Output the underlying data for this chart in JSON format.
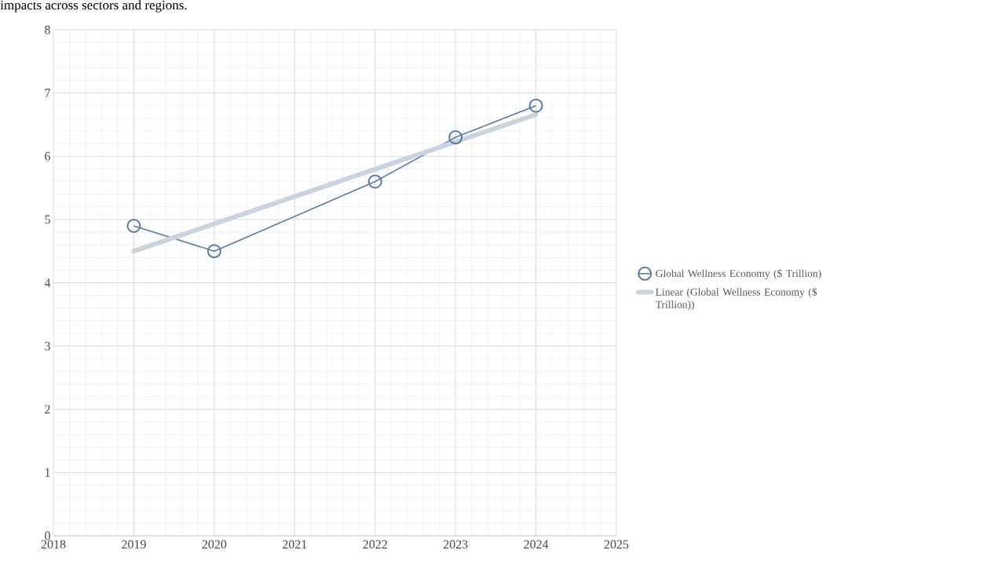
{
  "chart_data": {
    "type": "line",
    "annotations": [
      "impacts across sectors and regions."
    ],
    "series": [
      {
        "name": "Global Wellness Economy ($ Trillion)",
        "color": "#5b7bab",
        "x": [
          2019,
          2020,
          2022,
          2023,
          2024
        ],
        "values": [
          4.9,
          4.5,
          5.6,
          6.3,
          6.8
        ],
        "marker": "circle"
      },
      {
        "name": "Linear (Global Wellness Economy ($ Trillion))",
        "type": "line",
        "color": "#c9d3e2",
        "x": [
          2019,
          2024
        ],
        "values": [
          4.5,
          6.66
        ],
        "marker": "none"
      }
    ],
    "xlim": [
      2018,
      2025
    ],
    "xticks": [
      2018,
      2019,
      2020,
      2021,
      2022,
      2023,
      2024,
      2025
    ],
    "ylim": [
      0,
      8
    ],
    "yticks": [
      0,
      1,
      2,
      3,
      4,
      5,
      6,
      7,
      8
    ],
    "grid": true,
    "legend": "right",
    "line_style": "solid"
  }
}
